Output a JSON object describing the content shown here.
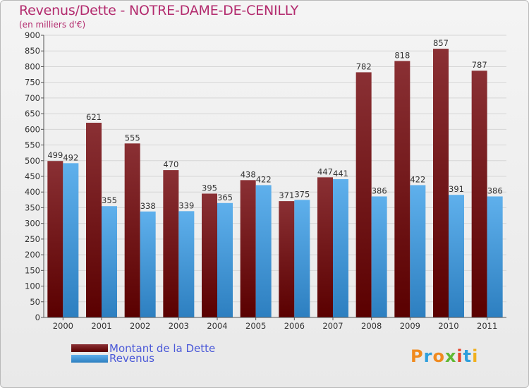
{
  "title": "Revenus/Dette - NOTRE-DAME-DE-CENILLY",
  "subtitle": "(en milliers d'€)",
  "logo": {
    "letters": [
      "P",
      "r",
      "o",
      "x",
      "i",
      "t",
      "i"
    ],
    "colors": [
      "#f08a1e",
      "#2e9fdc",
      "#f08a1e",
      "#5fb832",
      "#e6422a",
      "#2e9fdc",
      "#f0b01e"
    ]
  },
  "colors": {
    "dette": "#7a1616",
    "revenus": "#3a9ae0",
    "title": "#b32b6e",
    "legend_text": "#4b59d8"
  },
  "chart_data": {
    "type": "bar",
    "title": "Revenus/Dette - NOTRE-DAME-DE-CENILLY",
    "ylabel": "(en milliers d'€)",
    "categories": [
      "2000",
      "2001",
      "2002",
      "2003",
      "2004",
      "2005",
      "2006",
      "2007",
      "2008",
      "2009",
      "2010",
      "2011"
    ],
    "series": [
      {
        "name": "Montant de la Dette",
        "values": [
          499,
          621,
          555,
          470,
          395,
          438,
          371,
          447,
          782,
          818,
          857,
          787
        ]
      },
      {
        "name": "Revenus",
        "values": [
          492,
          355,
          338,
          339,
          365,
          422,
          375,
          441,
          386,
          422,
          391,
          386
        ]
      }
    ],
    "ylim": [
      0,
      900
    ],
    "yticks": [
      0,
      50,
      100,
      150,
      200,
      250,
      300,
      350,
      400,
      450,
      500,
      550,
      600,
      650,
      700,
      750,
      800,
      850,
      900
    ],
    "grid": true,
    "legend": "bottom-left"
  }
}
